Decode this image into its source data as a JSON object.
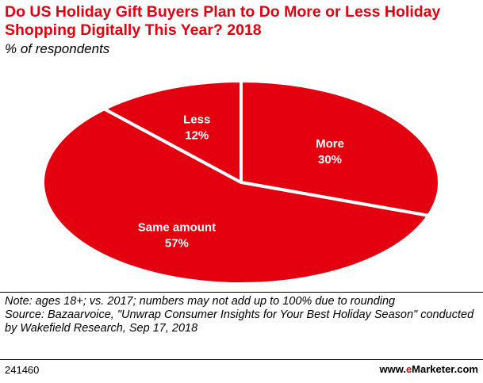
{
  "title": "Do US Holiday Gift Buyers Plan to Do More or Less Holiday Shopping Digitally This Year? 2018",
  "subtitle": "% of respondents",
  "chart_data": {
    "type": "pie",
    "title": "Do US Holiday Gift Buyers Plan to Do More or Less Holiday Shopping Digitally This Year? 2018",
    "subtitle": "% of respondents",
    "slices": [
      {
        "label": "More",
        "value": 30,
        "display": "30%"
      },
      {
        "label": "Same amount",
        "value": 57,
        "display": "57%"
      },
      {
        "label": "Less",
        "value": 12,
        "display": "12%"
      }
    ],
    "colors": {
      "slice": "#e3000f",
      "separator": "#ffffff"
    },
    "legend": "none"
  },
  "note": {
    "line1": "Note: ages 18+; vs. 2017; numbers may not add up to 100% due to rounding",
    "line2": "Source: Bazaarvoice, \"Unwrap Consumer Insights for Your Best Holiday Season\" conducted by Wakefield Research, Sep 17, 2018"
  },
  "footer": {
    "id": "241460",
    "brand_prefix": "www.",
    "brand_accent": "e",
    "brand_suffix": "Marketer.com"
  },
  "colors": {
    "accent": "#e3000f",
    "text": "#000000",
    "background": "#ffffff"
  }
}
